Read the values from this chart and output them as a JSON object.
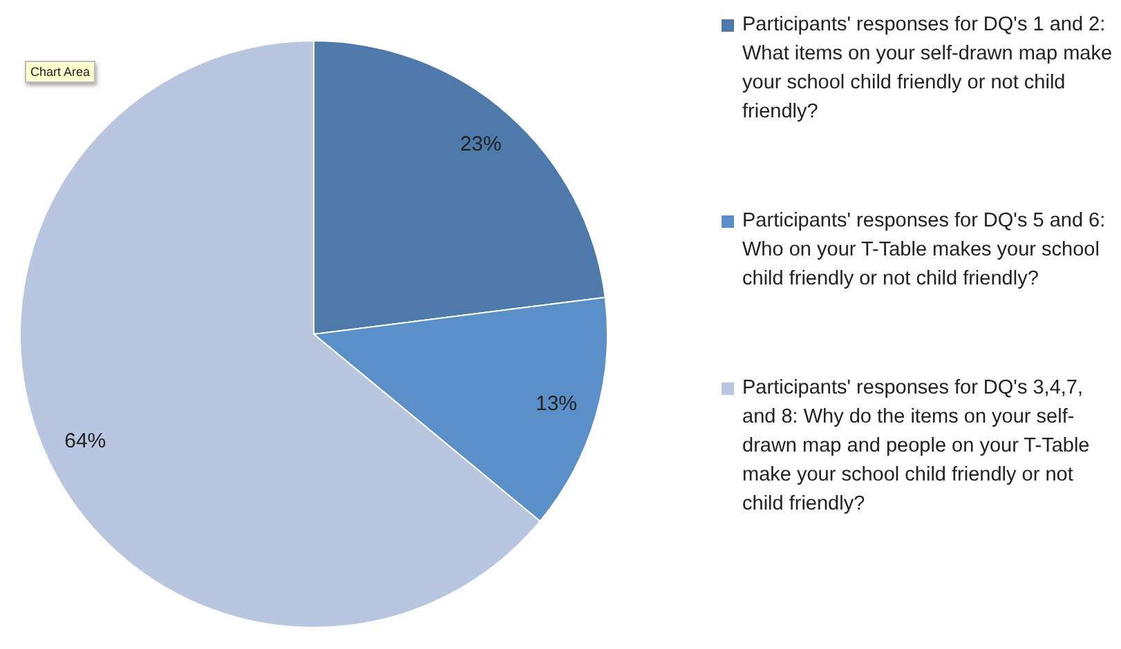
{
  "chart_data": {
    "type": "pie",
    "categories": [
      "Participants' responses for DQ's 1 and 2: What items on your self-drawn map make your school child friendly or not child friendly?",
      "Participants' responses for DQ's 5 and 6: Who on your T-Table makes your school child friendly or not child friendly?",
      "Participants' responses for DQ's 3,4,7, and 8: Why do the items on your self-drawn map and people on your T-Table make your school child friendly or not child friendly?"
    ],
    "values": [
      23,
      13,
      64
    ],
    "colors": [
      "#4e7aab",
      "#5b8fc7",
      "#b8c6df"
    ],
    "value_labels": [
      "23%",
      "13%",
      "64%"
    ],
    "legend": "right",
    "annotations": [
      "Chart Area"
    ]
  }
}
